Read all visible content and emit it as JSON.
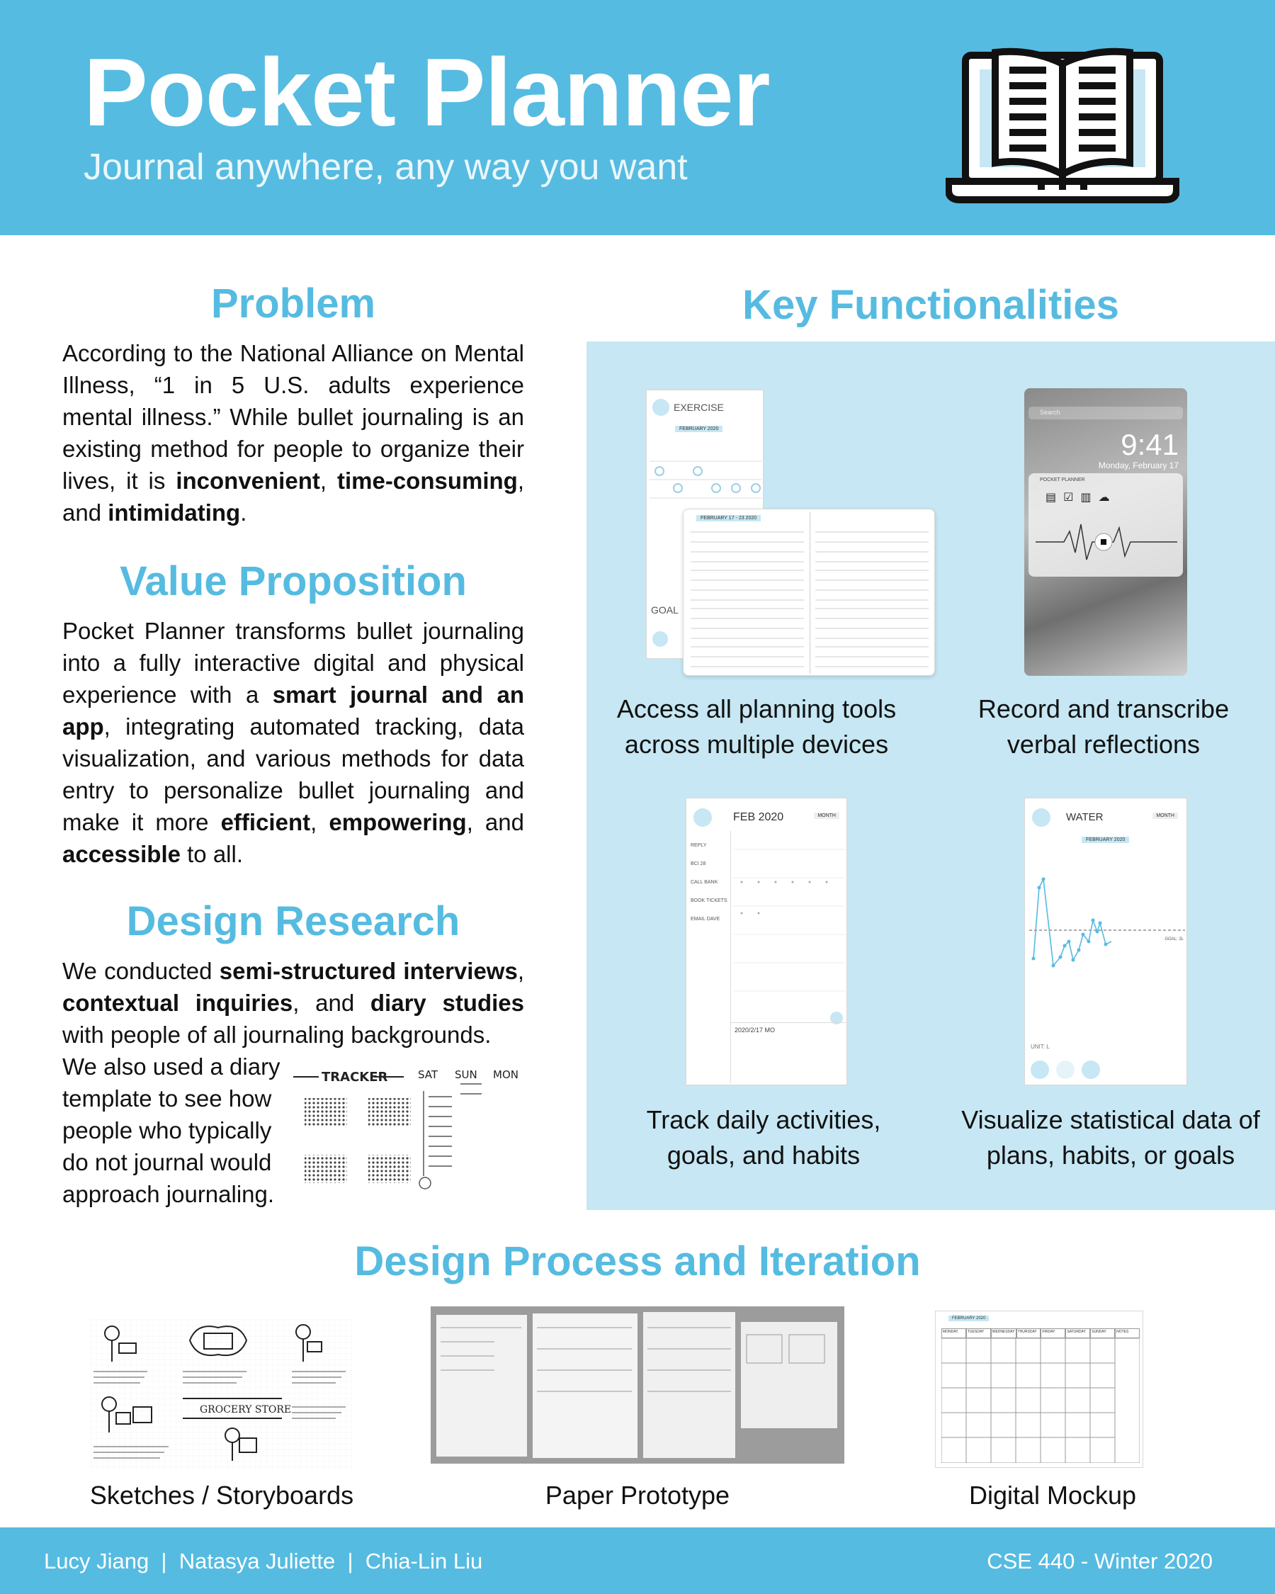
{
  "header": {
    "title": "Pocket Planner",
    "subtitle": "Journal anywhere, any way you want",
    "logo_icon": "open-book-laptop-icon"
  },
  "problem": {
    "heading": "Problem",
    "text_html": "According to the National Alliance on Mental Illness, “1 in 5 U.S. adults experience mental illness.” While bullet journaling is an existing method for people to organize their lives, it is <b>inconvenient</b>, <b>time-consuming</b>, and <b>intimidating</b>."
  },
  "value": {
    "heading": "Value Proposition",
    "text_html": "Pocket Planner transforms bullet journaling into a fully interactive digital and physical experience with a <b>smart journal and an app</b>, integrating automated tracking, data visualization, and various methods for data entry to personalize bullet journaling and make it more <b>efficient</b>, <b>empowering</b>, and <b>accessible</b> to all."
  },
  "research": {
    "heading": "Design Research",
    "text_html": "We conducted <b>semi-structured interviews</b>, <b>contextual inquiries</b>, and <b>diary studies</b> with people of all journaling backgrounds.",
    "text2": "We also used a diary template to see how people who typically do not journal would approach journaling.",
    "tracker_labels": [
      "TRACKER",
      "SAT",
      "SUN",
      "MON"
    ]
  },
  "key": {
    "heading": "Key Functionalities",
    "items": [
      {
        "caption": "Access all planning tools across multiple devices"
      },
      {
        "caption": "Record and transcribe verbal reflections"
      },
      {
        "caption": "Track daily activities, goals, and habits"
      },
      {
        "caption": "Visualize statistical data of plans, habits, or goals"
      }
    ],
    "exercise": {
      "title": "EXERCISE",
      "month": "FEBRUARY 2020",
      "goal": "GOAL",
      "week": "FEBRUARY 17 - 23 2020"
    },
    "lock": {
      "time": "9:41",
      "date": "Monday, February 17",
      "notif": "POCKET PLANNER",
      "search": "Search"
    },
    "feb": {
      "title": "FEB 2020",
      "mode": "MONTH",
      "tasks": [
        "REPLY",
        "BCI 28",
        "CALL BANK",
        "BOOK TICKETS",
        "EMAIL DAVE"
      ],
      "date": "2020/2/17 MO"
    },
    "water": {
      "title": "WATER",
      "mode": "MONTH",
      "month": "FEBRUARY 2020",
      "unit": "UNIT: L",
      "goal": "GOAL: 2L"
    }
  },
  "process": {
    "heading": "Design Process and Iteration",
    "items": [
      {
        "caption": "Sketches / Storyboards"
      },
      {
        "caption": "Paper Prototype"
      },
      {
        "caption": "Digital Mockup"
      }
    ],
    "store_label": "GROCERY STORE",
    "mockup_month": "FEBRUARY 2020",
    "mockup_days": [
      "MONDAY",
      "TUESDAY",
      "WEDNESDAY",
      "THURSDAY",
      "FRIDAY",
      "SATURDAY",
      "SUNDAY",
      "NOTES"
    ]
  },
  "footer": {
    "authors": "Lucy Jiang  |  Natasya Juliette  |  Chia-Lin Liu",
    "course": "CSE 440 - Winter 2020"
  }
}
